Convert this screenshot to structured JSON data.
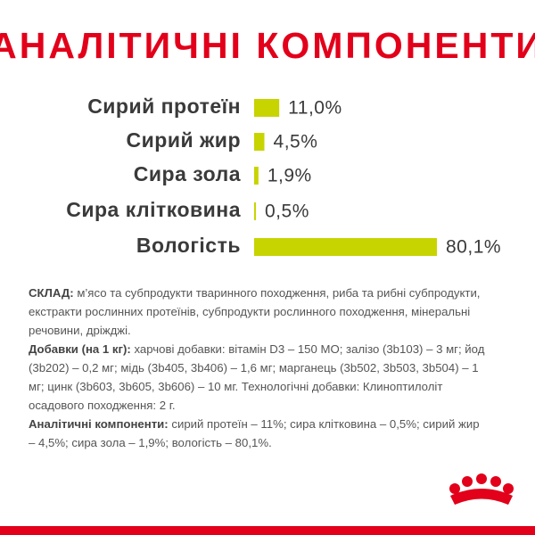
{
  "chart_data": {
    "type": "hbar",
    "title": "АНАЛІТИЧНІ КОМПОНЕНТИ",
    "categories": [
      "Сирий протеїн",
      "Сирий жир",
      "Сира зола",
      "Сира клітковина",
      "Вологість"
    ],
    "values": [
      11.0,
      4.5,
      1.9,
      0.5,
      80.1
    ],
    "value_labels": [
      "11,0%",
      "4,5%",
      "1,9%",
      "0,5%",
      "80,1%"
    ],
    "color": "#c8d400"
  },
  "composition": [
    {
      "label": "СКЛАД:",
      "text": "м’ясо та субпродукти тваринного походження, риба та рибні субпродукти, екстракти рослинних протеїнів, субпродукти рослинного походження, мінеральні речовини, дріжджі."
    },
    {
      "label": "Добавки (на 1 кг):",
      "text": "харчові добавки: вітамін D3 – 150 МО; залізо (3b103) – 3 мг; йод (3b202) – 0,2 мг; мідь (3b405, 3b406) – 1,6 мг; марганець (3b502, 3b503, 3b504) – 1 мг; цинк (3b603, 3b605, 3b606) – 10 мг. Технологічні добавки: Клиноптилоліт осадового походження: 2 г."
    },
    {
      "label": "Аналітичні компоненти:",
      "text": "сирий протеїн – 11%; сира клітковина – 0,5%; сирий жир – 4,5%; сира зола – 1,9%; вологість – 80,1%."
    }
  ]
}
